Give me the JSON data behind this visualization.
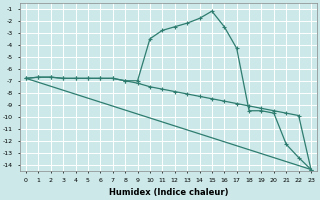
{
  "xlabel": "Humidex (Indice chaleur)",
  "bg_color": "#cce8e8",
  "grid_color": "#ffffff",
  "line_color": "#2e7d70",
  "xlim": [
    -0.5,
    23.5
  ],
  "ylim": [
    -14.5,
    -0.5
  ],
  "xticks": [
    0,
    1,
    2,
    3,
    4,
    5,
    6,
    7,
    8,
    9,
    10,
    11,
    12,
    13,
    14,
    15,
    16,
    17,
    18,
    19,
    20,
    21,
    22,
    23
  ],
  "yticks": [
    -1,
    -2,
    -3,
    -4,
    -5,
    -6,
    -7,
    -8,
    -9,
    -10,
    -11,
    -12,
    -13,
    -14
  ],
  "series": [
    {
      "x": [
        0,
        1,
        2,
        3,
        4,
        5,
        6,
        7,
        8,
        9,
        10,
        11,
        12,
        13,
        14,
        15,
        16,
        17,
        18,
        19,
        20,
        21,
        22,
        23
      ],
      "y": [
        -6.8,
        -6.7,
        -6.7,
        -6.8,
        -6.8,
        -6.8,
        -6.8,
        -6.8,
        -7.0,
        -7.0,
        -3.5,
        -2.8,
        -2.5,
        -2.2,
        -1.8,
        -1.2,
        -2.5,
        -4.3,
        -9.5,
        -9.5,
        -9.7,
        -12.3,
        -13.4,
        -14.4
      ]
    },
    {
      "x": [
        0,
        23
      ],
      "y": [
        -6.8,
        -14.4
      ]
    },
    {
      "x": [
        0,
        1,
        2,
        3,
        4,
        5,
        6,
        7,
        8,
        9,
        10,
        11,
        12,
        13,
        14,
        15,
        16,
        17,
        18,
        19,
        20,
        21,
        22,
        23
      ],
      "y": [
        -6.8,
        -6.7,
        -6.7,
        -6.8,
        -6.8,
        -6.8,
        -6.8,
        -6.8,
        -7.0,
        -7.2,
        -7.5,
        -7.7,
        -7.9,
        -8.1,
        -8.3,
        -8.5,
        -8.7,
        -8.9,
        -9.1,
        -9.3,
        -9.5,
        -9.7,
        -9.9,
        -14.4
      ]
    }
  ]
}
